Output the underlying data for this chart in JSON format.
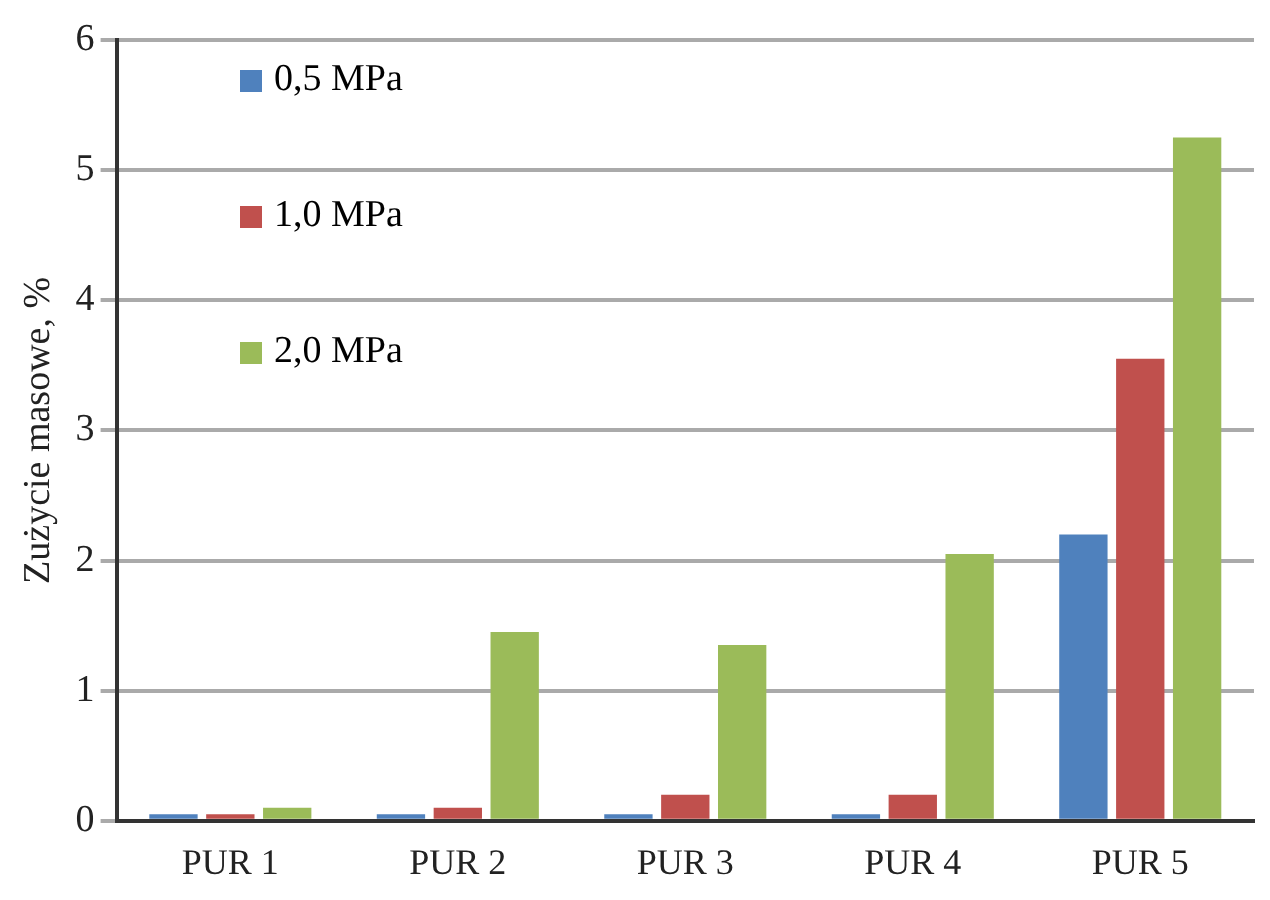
{
  "chart_data": {
    "type": "bar",
    "ylabel": "Zużycie masowe, %",
    "categories": [
      "PUR 1",
      "PUR 2",
      "PUR 3",
      "PUR 4",
      "PUR 5"
    ],
    "series": [
      {
        "name": "0,5 MPa",
        "color": "#4f81bd",
        "values": [
          0.05,
          0.05,
          0.05,
          0.05,
          2.2
        ]
      },
      {
        "name": "1,0 MPa",
        "color": "#c0504d",
        "values": [
          0.05,
          0.1,
          0.2,
          0.2,
          3.55
        ]
      },
      {
        "name": "2,0 MPa",
        "color": "#9bbb59",
        "values": [
          0.1,
          1.45,
          1.35,
          2.05,
          5.25
        ]
      }
    ],
    "ylim": [
      0,
      6
    ],
    "yticks": [
      0,
      1,
      2,
      3,
      4,
      5,
      6
    ],
    "grid": "y",
    "legend": "top left"
  }
}
